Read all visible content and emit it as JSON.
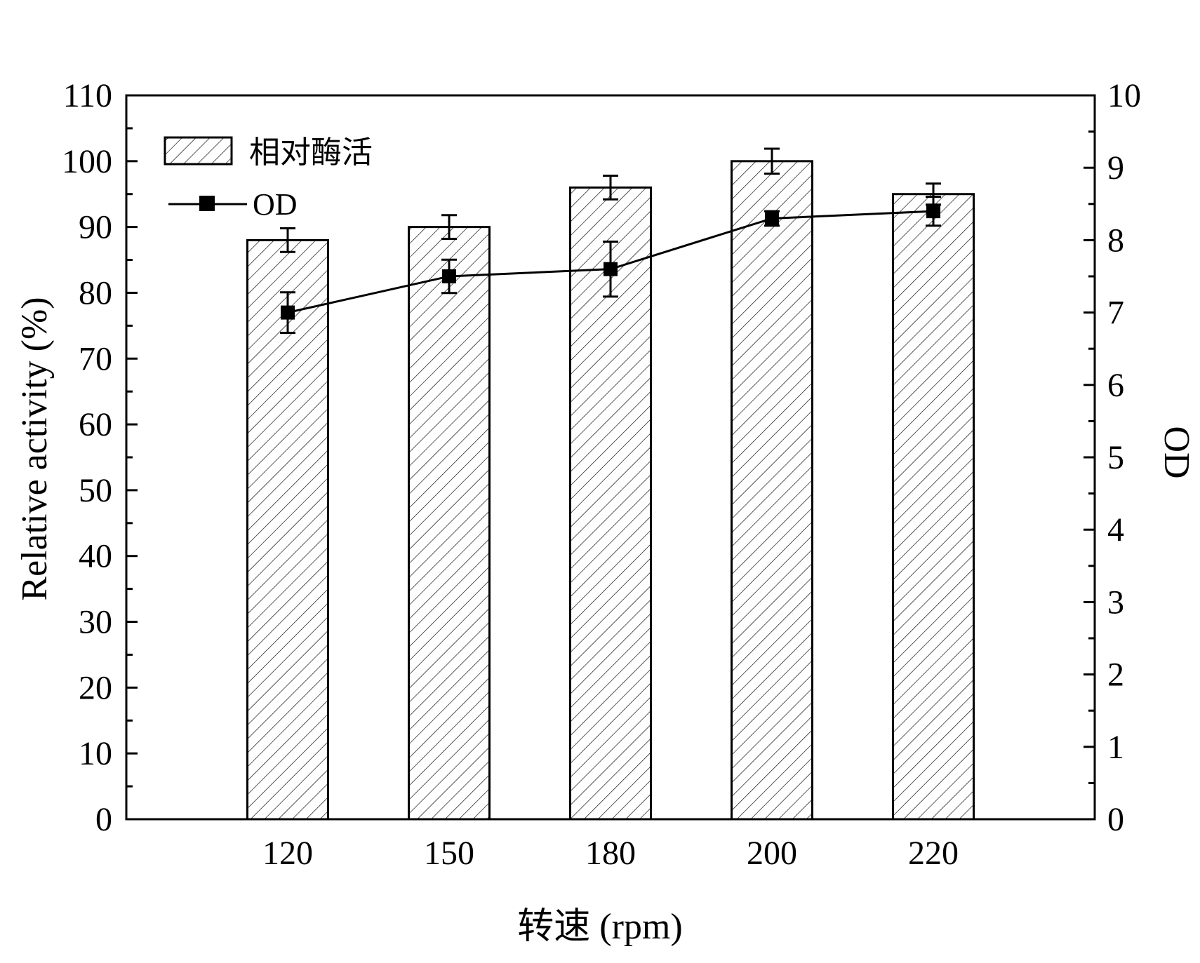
{
  "chart_data": {
    "type": "bar",
    "categories": [
      "120",
      "150",
      "180",
      "200",
      "220"
    ],
    "xlabel": "转速 (rpm)",
    "ylabel": "Relative activity (%)",
    "y2label": "OD",
    "ylim": [
      0,
      110
    ],
    "y2lim": [
      0,
      10
    ],
    "yticks": [
      "0",
      "10",
      "20",
      "30",
      "40",
      "50",
      "60",
      "70",
      "80",
      "90",
      "100",
      "110"
    ],
    "y2ticks": [
      "0",
      "1",
      "2",
      "3",
      "4",
      "5",
      "6",
      "7",
      "8",
      "9",
      "10"
    ],
    "grid": false,
    "legend_position": "top-left",
    "series": [
      {
        "name": "相对酶活",
        "type": "bar",
        "axis": "left",
        "pattern": "diagonal-hatch",
        "values": [
          88,
          90,
          96,
          100,
          95
        ],
        "errors": [
          1.8,
          1.8,
          1.8,
          1.9,
          1.6
        ]
      },
      {
        "name": "OD",
        "type": "line",
        "axis": "right",
        "marker": "square",
        "values": [
          7.0,
          7.5,
          7.6,
          8.3,
          8.4
        ],
        "errors": [
          0.28,
          0.23,
          0.38,
          0.1,
          0.2
        ]
      }
    ],
    "colors": {
      "stroke": "#000000",
      "fill": "#ffffff"
    }
  }
}
